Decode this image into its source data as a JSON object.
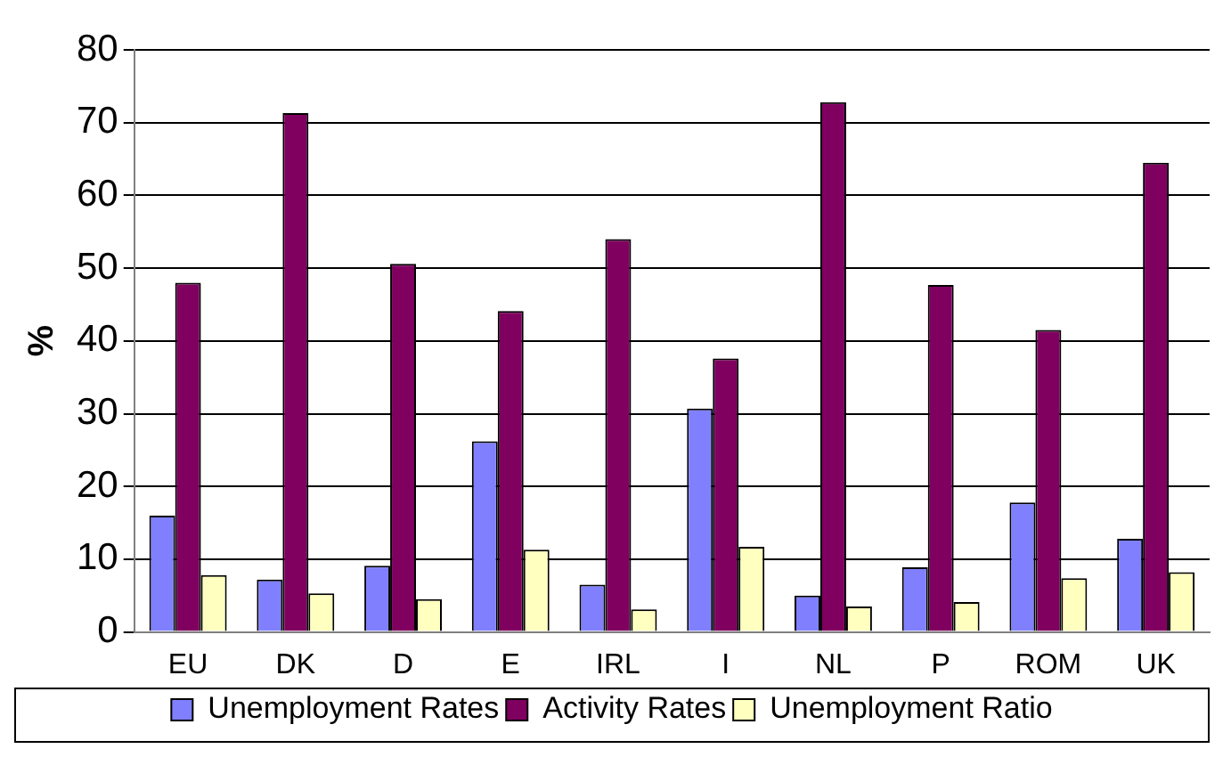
{
  "chart_data": {
    "type": "bar",
    "ylabel": "%",
    "categories": [
      "EU",
      "DK",
      "D",
      "E",
      "IRL",
      "I",
      "NL",
      "P",
      "ROM",
      "UK"
    ],
    "series": [
      {
        "name": "Unemployment Rates",
        "color": "#8080ff",
        "values": [
          16,
          7.2,
          9.1,
          26.2,
          6.5,
          30.7,
          5,
          8.9,
          17.8,
          12.8
        ]
      },
      {
        "name": "Activity Rates",
        "color": "#800060",
        "values": [
          48,
          71.3,
          50.6,
          44.1,
          54,
          37.6,
          72.8,
          47.7,
          41.5,
          64.5
        ]
      },
      {
        "name": "Unemployment Ratio",
        "color": "#ffffc0",
        "values": [
          7.8,
          5.3,
          4.5,
          11.3,
          3.1,
          11.7,
          3.5,
          4.1,
          7.4,
          8.2
        ]
      }
    ],
    "ylim": [
      0,
      80
    ],
    "yticks": [
      0,
      10,
      20,
      30,
      40,
      50,
      60,
      70,
      80
    ],
    "grid": "y",
    "legend": "bottom"
  }
}
